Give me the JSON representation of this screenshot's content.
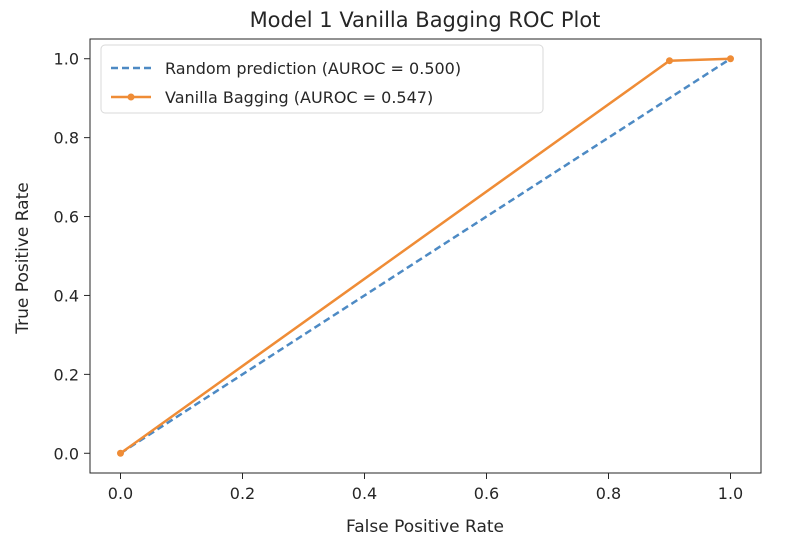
{
  "chart_data": {
    "type": "line",
    "title": "Model 1 Vanilla Bagging ROC Plot",
    "xlabel": "False Positive Rate",
    "ylabel": "True Positive Rate",
    "xlim": [
      -0.05,
      1.05
    ],
    "ylim": [
      -0.05,
      1.05
    ],
    "xticks": [
      0.0,
      0.2,
      0.4,
      0.6,
      0.8,
      1.0
    ],
    "yticks": [
      0.0,
      0.2,
      0.4,
      0.6,
      0.8,
      1.0
    ],
    "xtick_labels": [
      "0.0",
      "0.2",
      "0.4",
      "0.6",
      "0.8",
      "1.0"
    ],
    "ytick_labels": [
      "0.0",
      "0.2",
      "0.4",
      "0.6",
      "0.8",
      "1.0"
    ],
    "grid": false,
    "legend_position": "top-left",
    "series": [
      {
        "name": "Random prediction (AUROC = 0.500)",
        "x": [
          0.0,
          1.0
        ],
        "y": [
          0.0,
          1.0
        ],
        "color": "#4d8ac4",
        "style": "dashed",
        "markers": false
      },
      {
        "name": "Vanilla Bagging (AUROC = 0.547)",
        "x": [
          0.0,
          0.9,
          1.0
        ],
        "y": [
          0.0,
          0.995,
          1.0
        ],
        "color": "#ef8c36",
        "style": "solid",
        "markers": true
      }
    ]
  }
}
